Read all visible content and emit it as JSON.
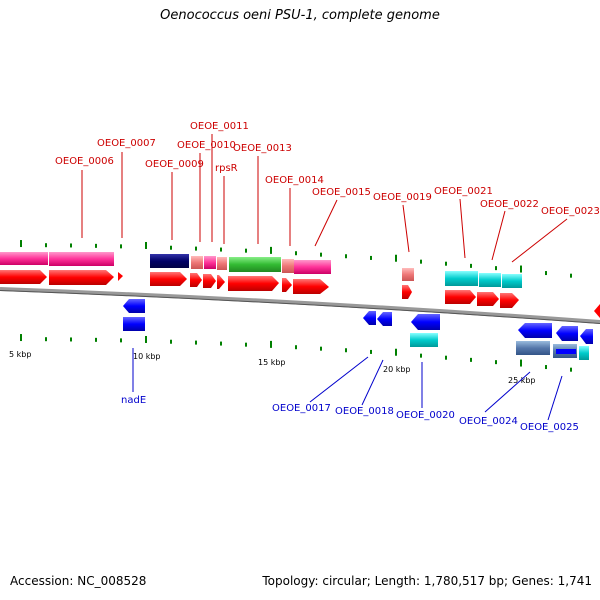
{
  "title": "Oenococcus oeni PSU-1, complete genome",
  "footer": {
    "accession": "Accession: NC_008528",
    "topology": "Topology: circular; Length: 1,780,517 bp; Genes: 1,741"
  },
  "colors": {
    "backbone": "#999999",
    "cds": "#ff0000",
    "cds_minus": "#0000ff",
    "label_top": "#cc0000",
    "label_bottom": "#0000cc",
    "tick": "#008000"
  },
  "tick_labels": [
    "5 kbp",
    "10 kbp",
    "15 kbp",
    "20 kbp",
    "25 kbp"
  ],
  "top_genes": [
    "OEOE_0006",
    "OEOE_0007",
    "OEOE_0009",
    "OEOE_0010",
    "OEOE_0011",
    "rpsR",
    "OEOE_0013",
    "OEOE_0014",
    "OEOE_0015",
    "OEOE_0019",
    "OEOE_0021",
    "OEOE_0022",
    "OEOE_0023"
  ],
  "bottom_genes": [
    "nadE",
    "OEOE_0017",
    "OEOE_0018",
    "OEOE_0020",
    "OEOE_0024",
    "OEOE_0025"
  ]
}
